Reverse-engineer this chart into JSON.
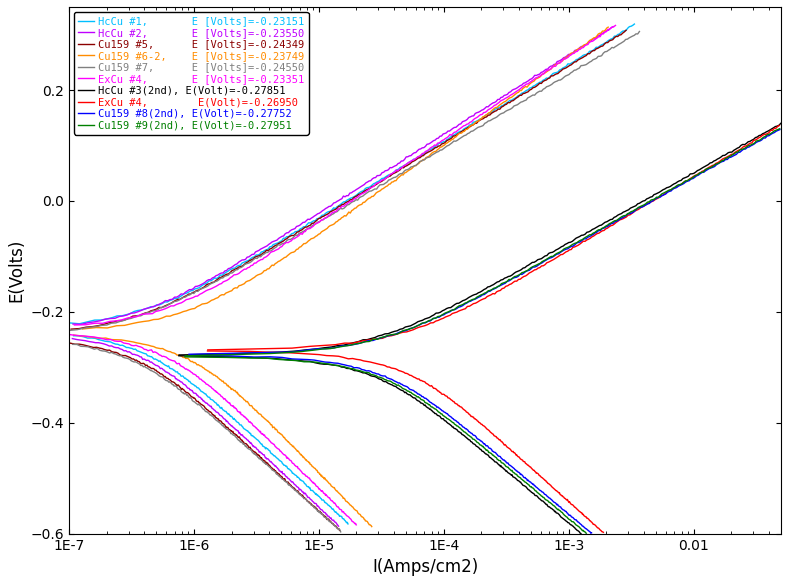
{
  "title": "",
  "xlabel": "I(Amps/cm2)",
  "ylabel": "E(Volts)",
  "xlim": [
    1e-07,
    0.05
  ],
  "ylim": [
    -0.6,
    0.35
  ],
  "series": [
    {
      "label": "HcCu #1,       E [Volts]=-0.23151",
      "color": "#00BFFF",
      "Ecorr": -0.23151,
      "icorr": 3.5e-07,
      "ba": 0.06,
      "bc": 0.09,
      "noise": 0.0008
    },
    {
      "label": "HcCu #2,       E [Volts]=-0.23550",
      "color": "#BF00FF",
      "Ecorr": -0.2355,
      "icorr": 3.2e-07,
      "ba": 0.062,
      "bc": 0.092,
      "noise": 0.0008
    },
    {
      "label": "Cu159 #5,      E [Volts]=-0.24349",
      "color": "#8B0000",
      "Ecorr": -0.24349,
      "icorr": 3e-07,
      "ba": 0.06,
      "bc": 0.09,
      "noise": 0.0008
    },
    {
      "label": "Cu159 #6-2,    E [Volts]=-0.23749",
      "color": "#FF8C00",
      "Ecorr": -0.23749,
      "icorr": 8e-07,
      "ba": 0.07,
      "bc": 0.1,
      "noise": 0.0008
    },
    {
      "label": "Cu159 #7,      E [Volts]=-0.24550",
      "color": "#808080",
      "Ecorr": -0.2455,
      "icorr": 2.8e-07,
      "ba": 0.058,
      "bc": 0.088,
      "noise": 0.0008
    },
    {
      "label": "ExCu #4,       E [Volts]=-0.23351",
      "color": "#FF00FF",
      "Ecorr": -0.23351,
      "icorr": 5e-07,
      "ba": 0.065,
      "bc": 0.095,
      "noise": 0.0008
    },
    {
      "label": "HcCu #3(2nd), E(Volt)=-0.27851",
      "color": "#000000",
      "Ecorr": -0.27851,
      "icorr": 2.5e-05,
      "ba": 0.055,
      "bc": 0.082,
      "noise": 0.0006
    },
    {
      "label": "ExCu #4,        E(Volt)=-0.26950",
      "color": "#FF0000",
      "Ecorr": -0.2695,
      "icorr": 4.5e-05,
      "ba": 0.058,
      "bc": 0.088,
      "noise": 0.0006
    },
    {
      "label": "Cu159 #8(2nd), E(Volt)=-0.27752",
      "color": "#0000FF",
      "Ecorr": -0.27752,
      "icorr": 3e-05,
      "ba": 0.055,
      "bc": 0.082,
      "noise": 0.0006
    },
    {
      "label": "Cu159 #9(2nd), E(Volt)=-0.27951",
      "color": "#008000",
      "Ecorr": -0.27951,
      "icorr": 2.8e-05,
      "ba": 0.055,
      "bc": 0.082,
      "noise": 0.0006
    }
  ],
  "legend_fontsize": 7.5,
  "tick_fontsize": 10,
  "label_fontsize": 12
}
